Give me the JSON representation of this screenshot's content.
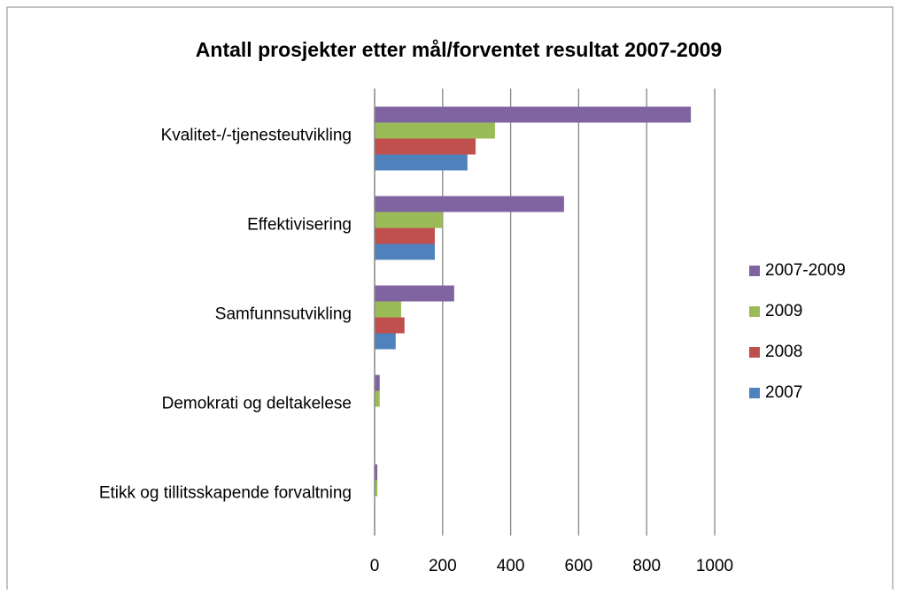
{
  "chart_data": {
    "type": "hbar",
    "title": "Antall prosjekter etter mål/forventet resultat 2007-2009",
    "categories": [
      "Kvalitet-/-tjenesteutvikling",
      "Effektivisering",
      "Samfunnsutvikling",
      "Demokrati og deltakelese",
      "Etikk og tillitsskapende forvaltning"
    ],
    "series": [
      {
        "name": "2007",
        "color": "#4f81bd",
        "values": [
          273,
          177,
          62,
          0,
          0
        ]
      },
      {
        "name": "2008",
        "color": "#c0504d",
        "values": [
          297,
          177,
          88,
          0,
          0
        ]
      },
      {
        "name": "2009",
        "color": "#9bbb59",
        "values": [
          354,
          200,
          78,
          15,
          8
        ]
      },
      {
        "name": "2007-2009",
        "color": "#8064a2",
        "values": [
          930,
          557,
          234,
          15,
          8
        ]
      }
    ],
    "xlim": [
      0,
      1000
    ],
    "xticks": [
      0,
      200,
      400,
      600,
      800,
      1000
    ],
    "grid": true,
    "legend": "right"
  }
}
